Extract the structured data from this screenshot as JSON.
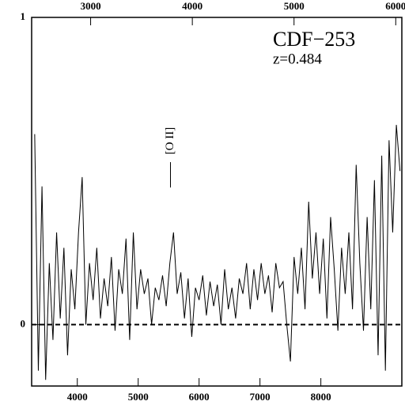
{
  "chart_data": {
    "type": "line",
    "title": "CDF−253",
    "subtitle": "z=0.484",
    "annotation": {
      "text": "[O II]",
      "x": 5530
    },
    "x": [
      3300,
      3360,
      3420,
      3480,
      3540,
      3600,
      3660,
      3720,
      3780,
      3840,
      3900,
      3960,
      4020,
      4080,
      4140,
      4200,
      4260,
      4320,
      4380,
      4440,
      4500,
      4560,
      4620,
      4680,
      4740,
      4800,
      4860,
      4920,
      4980,
      5040,
      5100,
      5160,
      5220,
      5280,
      5340,
      5400,
      5460,
      5520,
      5580,
      5640,
      5700,
      5760,
      5820,
      5880,
      5940,
      6000,
      6060,
      6120,
      6180,
      6240,
      6300,
      6360,
      6420,
      6480,
      6540,
      6600,
      6660,
      6720,
      6780,
      6840,
      6900,
      6960,
      7020,
      7080,
      7140,
      7200,
      7260,
      7320,
      7380,
      7440,
      7500,
      7560,
      7620,
      7680,
      7740,
      7800,
      7860,
      7920,
      7980,
      8040,
      8100,
      8160,
      8220,
      8280,
      8340,
      8400,
      8460,
      8520,
      8580,
      8640,
      8700,
      8760,
      8820,
      8880,
      8940,
      9000,
      9060,
      9120,
      9180,
      9240,
      9300
    ],
    "series": [
      {
        "color": "#000000",
        "values": [
          0.62,
          -0.15,
          0.45,
          -0.18,
          0.2,
          -0.05,
          0.3,
          0.02,
          0.25,
          -0.1,
          0.18,
          0.05,
          0.3,
          0.48,
          0.0,
          0.2,
          0.08,
          0.25,
          0.02,
          0.15,
          0.06,
          0.22,
          -0.02,
          0.18,
          0.1,
          0.28,
          -0.05,
          0.3,
          0.05,
          0.18,
          0.1,
          0.15,
          0.0,
          0.12,
          0.08,
          0.16,
          0.06,
          0.2,
          0.3,
          0.1,
          0.17,
          0.02,
          0.15,
          -0.04,
          0.12,
          0.08,
          0.16,
          0.03,
          0.14,
          0.06,
          0.13,
          0.0,
          0.18,
          0.05,
          0.12,
          0.02,
          0.15,
          0.1,
          0.2,
          0.05,
          0.18,
          0.08,
          0.2,
          0.1,
          0.16,
          0.04,
          0.2,
          0.12,
          0.14,
          0.0,
          -0.12,
          0.22,
          0.1,
          0.25,
          0.05,
          0.4,
          0.15,
          0.3,
          0.1,
          0.28,
          0.02,
          0.35,
          0.18,
          -0.02,
          0.25,
          0.1,
          0.3,
          0.05,
          0.52,
          0.2,
          -0.02,
          0.35,
          0.05,
          0.47,
          -0.1,
          0.55,
          -0.15,
          0.6,
          0.3,
          0.65,
          0.5
        ]
      }
    ],
    "xlim": [
      3250,
      9330
    ],
    "xticks": [
      4000,
      5000,
      6000,
      7000,
      8000
    ],
    "x2lim": [
      2420,
      6060
    ],
    "x2ticks": [
      3000,
      4000,
      5000,
      6000
    ],
    "ylim": [
      -0.2,
      1
    ],
    "yticks": [
      0,
      1
    ],
    "zero_line": true
  }
}
